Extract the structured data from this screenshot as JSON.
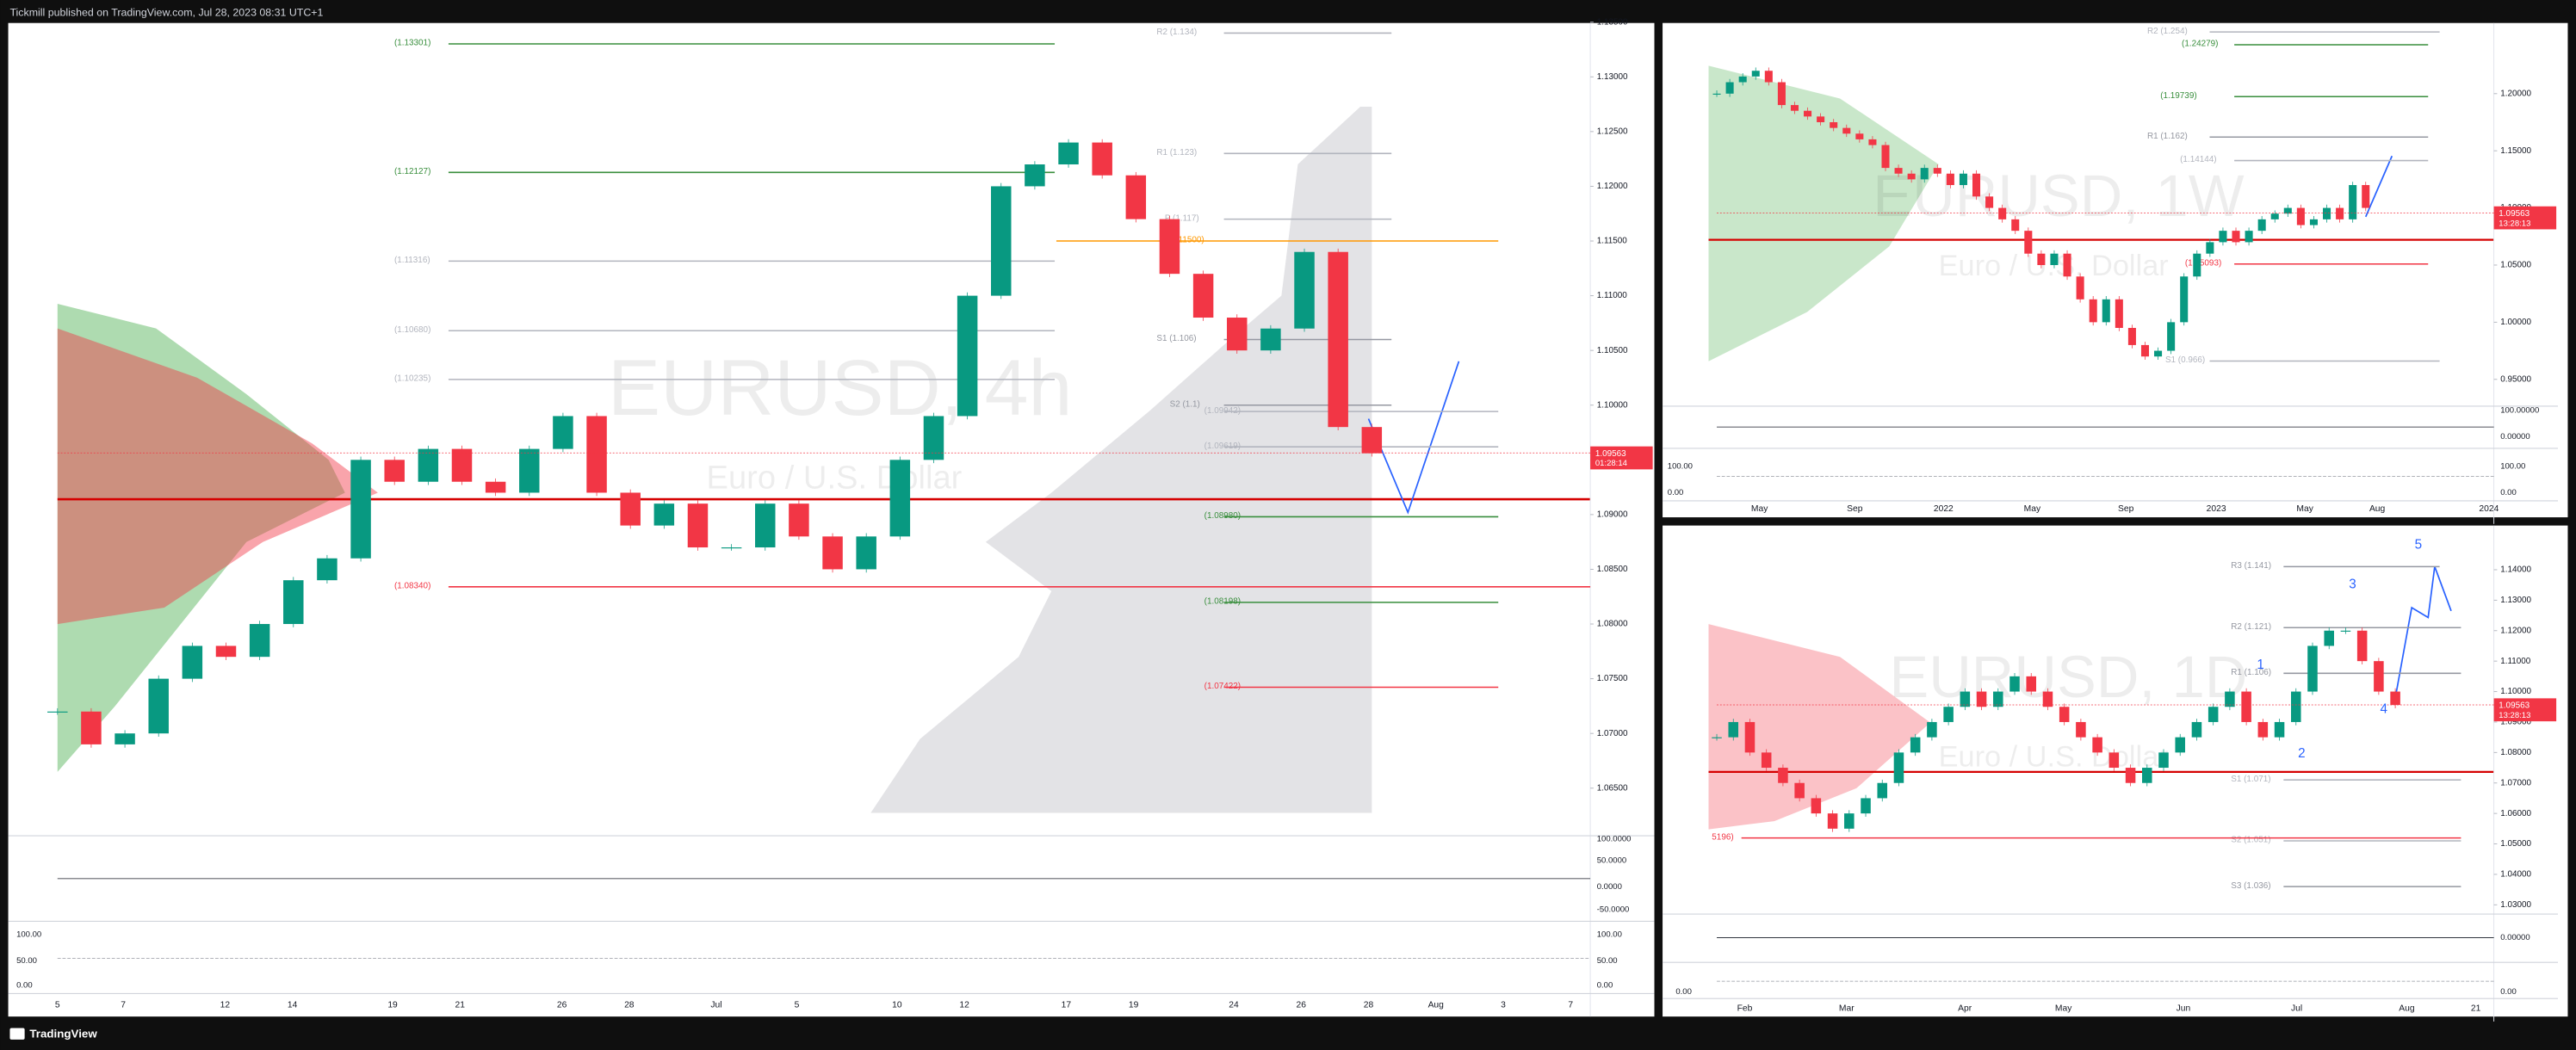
{
  "header": {
    "publisher": "Tickmill published on TradingView.com, Jul 28, 2023 08:31 UTC+1"
  },
  "footer": {
    "brand": "TradingView"
  },
  "panels": [
    {
      "symbol": "EURUSD, 4h",
      "description": "Euro / U.S. Dollar",
      "ylim": [
        1.0608,
        1.1349
      ],
      "yticks": [
        {
          "value": 1.135,
          "label": "1.13500"
        },
        {
          "value": 1.13,
          "label": "1.13000"
        },
        {
          "value": 1.125,
          "label": "1.12500"
        },
        {
          "value": 1.12,
          "label": "1.12000"
        },
        {
          "value": 1.115,
          "label": "1.11500"
        },
        {
          "value": 1.11,
          "label": "1.11000"
        },
        {
          "value": 1.105,
          "label": "1.10500"
        },
        {
          "value": 1.1,
          "label": "1.10000"
        },
        {
          "value": 1.095,
          "label": "1.09500"
        },
        {
          "value": 1.09,
          "label": "1.09000"
        },
        {
          "value": 1.085,
          "label": "1.08500"
        },
        {
          "value": 1.08,
          "label": "1.08000"
        },
        {
          "value": 1.075,
          "label": "1.07500"
        },
        {
          "value": 1.07,
          "label": "1.07000"
        },
        {
          "value": 1.065,
          "label": "1.06500"
        }
      ],
      "price_badge": {
        "value": 1.09563,
        "label": "1.09563",
        "countdown": "01:28:14"
      },
      "levels": [
        {
          "label": "(1.13301)",
          "value": 1.13301,
          "color": "#388e3c"
        },
        {
          "label": "(1.12127)",
          "value": 1.12127,
          "color": "#388e3c"
        },
        {
          "label": "(1.11316)",
          "value": 1.11316,
          "color": "#b2b5be"
        },
        {
          "label": "(1.10680)",
          "value": 1.1068,
          "color": "#b2b5be"
        },
        {
          "label": "(1.10235)",
          "value": 1.10235,
          "color": "#b2b5be"
        },
        {
          "label": "R2 (1.134)",
          "value": 1.134,
          "color": "#b2b5be"
        },
        {
          "label": "R1 (1.123)",
          "value": 1.123,
          "color": "#b2b5be"
        },
        {
          "label": "P (1.117)",
          "value": 1.117,
          "color": "#b2b5be"
        },
        {
          "label": "(1.11500)",
          "value": 1.115,
          "color": "#ff9800"
        },
        {
          "label": "S1 (1.106)",
          "value": 1.106,
          "color": "#9598a1"
        },
        {
          "label": "S2 (1.1)",
          "value": 1.1,
          "color": "#9598a1"
        },
        {
          "label": "(1.09942)",
          "value": 1.09942,
          "color": "#b2b5be"
        },
        {
          "label": "(1.09619)",
          "value": 1.09619,
          "color": "#b2b5be"
        },
        {
          "label": "(1.08980)",
          "value": 1.0898,
          "color": "#388e3c"
        },
        {
          "label": "(1.08340)",
          "value": 1.0834,
          "color": "#f23645"
        },
        {
          "label": "(1.08198)",
          "value": 1.08198,
          "color": "#388e3c"
        },
        {
          "label": "(1.07422)",
          "value": 1.07422,
          "color": "#f23645"
        }
      ],
      "closes": [
        1.072,
        1.069,
        1.07,
        1.075,
        1.078,
        1.077,
        1.08,
        1.084,
        1.086,
        1.095,
        1.093,
        1.096,
        1.093,
        1.092,
        1.096,
        1.099,
        1.092,
        1.089,
        1.091,
        1.087,
        1.087,
        1.091,
        1.088,
        1.085,
        1.088,
        1.095,
        1.099,
        1.11,
        1.12,
        1.122,
        1.124,
        1.121,
        1.117,
        1.112,
        1.108,
        1.105,
        1.107,
        1.114,
        1.098,
        1.0956
      ],
      "xlabels": [
        "5",
        "7",
        "12",
        "14",
        "19",
        "21",
        "26",
        "28",
        "Jul",
        "5",
        "10",
        "12",
        "17",
        "19",
        "24",
        "26",
        "28",
        "Aug",
        "3",
        "7"
      ],
      "osc_labels": [
        "100.0000",
        "50.0000",
        "0.0000",
        "-50.0000"
      ],
      "osc2_labels": [
        "100.00",
        "50.00",
        "0.00"
      ],
      "wave_labels": []
    },
    {
      "symbol": "EURUSD, 1W",
      "description": "Euro / U.S. Dollar",
      "ylim": [
        0.928,
        1.2616
      ],
      "yticks": [
        {
          "value": 1.2,
          "label": "1.20000"
        },
        {
          "value": 1.15,
          "label": "1.15000"
        },
        {
          "value": 1.1,
          "label": "1.10000"
        },
        {
          "value": 1.05,
          "label": "1.05000"
        },
        {
          "value": 1.0,
          "label": "1.00000"
        },
        {
          "value": 0.95,
          "label": "0.95000"
        }
      ],
      "price_badge": {
        "value": 1.09563,
        "label": "1.09563",
        "countdown": "13:28:13"
      },
      "levels": [
        {
          "label": "R2 (1.254)",
          "value": 1.254,
          "color": "#b2b5be"
        },
        {
          "label": "(1.24279)",
          "value": 1.24279,
          "color": "#388e3c"
        },
        {
          "label": "(1.19739)",
          "value": 1.19739,
          "color": "#388e3c"
        },
        {
          "label": "R1 (1.162)",
          "value": 1.162,
          "color": "#9598a1"
        },
        {
          "label": "(1.14144)",
          "value": 1.14144,
          "color": "#b2b5be"
        },
        {
          "label": "(1.05093)",
          "value": 1.05093,
          "color": "#f23645"
        },
        {
          "label": "S1 (0.966)",
          "value": 0.966,
          "color": "#b2b5be"
        }
      ],
      "closes": [
        1.2,
        1.21,
        1.215,
        1.22,
        1.21,
        1.19,
        1.185,
        1.18,
        1.175,
        1.17,
        1.165,
        1.16,
        1.155,
        1.135,
        1.13,
        1.125,
        1.135,
        1.13,
        1.12,
        1.13,
        1.11,
        1.1,
        1.09,
        1.08,
        1.06,
        1.05,
        1.06,
        1.04,
        1.02,
        1.0,
        1.02,
        0.995,
        0.98,
        0.97,
        0.975,
        1.0,
        1.04,
        1.06,
        1.07,
        1.08,
        1.07,
        1.08,
        1.09,
        1.095,
        1.1,
        1.085,
        1.09,
        1.1,
        1.09,
        1.12,
        1.1
      ],
      "xlabels": [
        "May",
        "Sep",
        "2022",
        "May",
        "Sep",
        "2023",
        "May",
        "Aug",
        "2024"
      ],
      "osc_labels": [
        "100.00000",
        "0.00000"
      ],
      "osc2_labels": [
        "100.00",
        "0.00"
      ],
      "wave_labels": []
    },
    {
      "symbol": "EURUSD, 1D",
      "description": "Euro / U.S. Dollar",
      "ylim": [
        1.0275,
        1.1544
      ],
      "yticks": [
        {
          "value": 1.14,
          "label": "1.14000"
        },
        {
          "value": 1.13,
          "label": "1.13000"
        },
        {
          "value": 1.12,
          "label": "1.12000"
        },
        {
          "value": 1.11,
          "label": "1.11000"
        },
        {
          "value": 1.1,
          "label": "1.10000"
        },
        {
          "value": 1.09,
          "label": "1.09000"
        },
        {
          "value": 1.08,
          "label": "1.08000"
        },
        {
          "value": 1.07,
          "label": "1.07000"
        },
        {
          "value": 1.06,
          "label": "1.06000"
        },
        {
          "value": 1.05,
          "label": "1.05000"
        },
        {
          "value": 1.04,
          "label": "1.04000"
        },
        {
          "value": 1.03,
          "label": "1.03000"
        }
      ],
      "price_badge": {
        "value": 1.09563,
        "label": "1.09563",
        "countdown": "13:28:13"
      },
      "levels": [
        {
          "label": "R3 (1.141)",
          "value": 1.141,
          "color": "#9598a1"
        },
        {
          "label": "R2 (1.121)",
          "value": 1.121,
          "color": "#9598a1"
        },
        {
          "label": "R1 (1.106)",
          "value": 1.106,
          "color": "#9598a1"
        },
        {
          "label": "S1 (1.071)",
          "value": 1.071,
          "color": "#b2b5be"
        },
        {
          "label": "S2 (1.051)",
          "value": 1.051,
          "color": "#b2b5be"
        },
        {
          "label": "S3 (1.036)",
          "value": 1.036,
          "color": "#9598a1"
        },
        {
          "label": "5196)",
          "value": 1.05196,
          "color": "#f23645"
        }
      ],
      "closes": [
        1.085,
        1.09,
        1.08,
        1.075,
        1.07,
        1.065,
        1.06,
        1.055,
        1.06,
        1.065,
        1.07,
        1.08,
        1.085,
        1.09,
        1.095,
        1.1,
        1.095,
        1.1,
        1.105,
        1.1,
        1.095,
        1.09,
        1.085,
        1.08,
        1.075,
        1.07,
        1.075,
        1.08,
        1.085,
        1.09,
        1.095,
        1.1,
        1.09,
        1.085,
        1.09,
        1.1,
        1.115,
        1.12,
        1.12,
        1.11,
        1.1,
        1.0956
      ],
      "xlabels": [
        "Feb",
        "Mar",
        "Apr",
        "May",
        "Jun",
        "Jul",
        "Aug",
        "21"
      ],
      "osc_labels": [
        "0.00000"
      ],
      "osc2_labels": [
        "0.00"
      ],
      "wave_labels": [
        "1",
        "2",
        "3",
        "4",
        "5"
      ]
    }
  ]
}
